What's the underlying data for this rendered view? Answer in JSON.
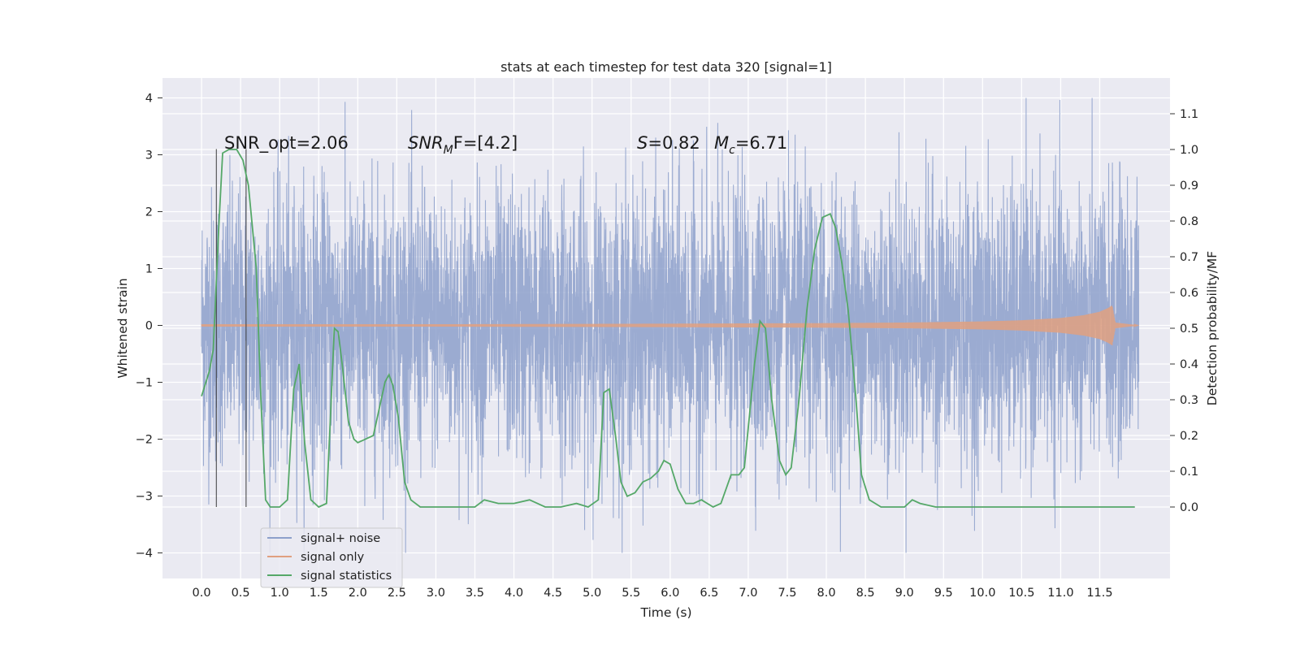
{
  "chart_data": {
    "type": "line",
    "title": "stats at each timestep for test data 320 [signal=1]",
    "xlabel": "Time (s)",
    "ylabel": "Whitened strain",
    "ylabel_right": "Detection probability/MF",
    "xlim": [
      -0.5,
      12.4
    ],
    "ylim": [
      -4.45,
      4.35
    ],
    "ylim_right": [
      -0.2,
      1.2
    ],
    "x_ticks": [
      "0.0",
      "0.5",
      "1.0",
      "1.5",
      "2.0",
      "2.5",
      "3.0",
      "3.5",
      "4.0",
      "4.5",
      "5.0",
      "5.5",
      "6.0",
      "6.5",
      "7.0",
      "7.5",
      "8.0",
      "8.5",
      "9.0",
      "9.5",
      "10.0",
      "10.5",
      "11.0",
      "11.5"
    ],
    "y_ticks": [
      "4",
      "3",
      "2",
      "1",
      "0",
      "−1",
      "−2",
      "−3",
      "−4"
    ],
    "y_ticks_right": [
      "1.1",
      "1.0",
      "0.9",
      "0.8",
      "0.7",
      "0.6",
      "0.5",
      "0.4",
      "0.3",
      "0.2",
      "0.1",
      "0.0"
    ],
    "grid": true,
    "legend_position": "lower-left",
    "annotations": {
      "snr_opt": "SNR_opt=2.06",
      "snr_mf_main": "SNR",
      "snr_mf_sub": "M",
      "snr_mf_rest": "F=[4.2]",
      "s_main": "S",
      "s_rest": "=0.82",
      "mc_main": "M",
      "mc_sub": "c",
      "mc_rest": "=6.71"
    },
    "vertical_markers_x": [
      0.19,
      0.57
    ],
    "series": [
      {
        "name": "signal+ noise",
        "color": "#8da0cb",
        "axis": "left",
        "time_range": [
          0.0,
          12.0
        ],
        "amplitude_typical": 1.2,
        "amplitude_peak": 4.0
      },
      {
        "name": "signal only",
        "color": "#e0a080",
        "axis": "left",
        "time_range": [
          0.0,
          12.0
        ],
        "envelope": [
          [
            0,
            0.02
          ],
          [
            3,
            0.02
          ],
          [
            6,
            0.03
          ],
          [
            8,
            0.04
          ],
          [
            9,
            0.05
          ],
          [
            10,
            0.07
          ],
          [
            10.5,
            0.09
          ],
          [
            11,
            0.13
          ],
          [
            11.3,
            0.18
          ],
          [
            11.5,
            0.24
          ],
          [
            11.6,
            0.3
          ],
          [
            11.66,
            0.35
          ],
          [
            11.7,
            0.05
          ],
          [
            12.0,
            0.0
          ]
        ]
      },
      {
        "name": "signal statistics",
        "color": "#55a868",
        "axis": "right",
        "points": [
          [
            0,
            0.31
          ],
          [
            0.1,
            0.38
          ],
          [
            0.15,
            0.44
          ],
          [
            0.22,
            0.78
          ],
          [
            0.27,
            0.99
          ],
          [
            0.35,
            1.0
          ],
          [
            0.45,
            1.0
          ],
          [
            0.53,
            0.97
          ],
          [
            0.6,
            0.9
          ],
          [
            0.7,
            0.67
          ],
          [
            0.76,
            0.3
          ],
          [
            0.82,
            0.02
          ],
          [
            0.88,
            0.0
          ],
          [
            1.0,
            0.0
          ],
          [
            1.1,
            0.02
          ],
          [
            1.18,
            0.33
          ],
          [
            1.25,
            0.4
          ],
          [
            1.32,
            0.18
          ],
          [
            1.4,
            0.02
          ],
          [
            1.5,
            0.0
          ],
          [
            1.6,
            0.01
          ],
          [
            1.65,
            0.25
          ],
          [
            1.7,
            0.5
          ],
          [
            1.75,
            0.49
          ],
          [
            1.8,
            0.4
          ],
          [
            1.88,
            0.24
          ],
          [
            1.95,
            0.19
          ],
          [
            2.0,
            0.18
          ],
          [
            2.1,
            0.19
          ],
          [
            2.2,
            0.2
          ],
          [
            2.28,
            0.28
          ],
          [
            2.35,
            0.35
          ],
          [
            2.4,
            0.37
          ],
          [
            2.45,
            0.34
          ],
          [
            2.52,
            0.25
          ],
          [
            2.6,
            0.07
          ],
          [
            2.68,
            0.02
          ],
          [
            2.8,
            0.0
          ],
          [
            3.0,
            0.0
          ],
          [
            3.3,
            0.0
          ],
          [
            3.5,
            0.0
          ],
          [
            3.62,
            0.02
          ],
          [
            3.8,
            0.01
          ],
          [
            4.0,
            0.01
          ],
          [
            4.2,
            0.02
          ],
          [
            4.4,
            0.0
          ],
          [
            4.6,
            0.0
          ],
          [
            4.8,
            0.01
          ],
          [
            4.95,
            0.0
          ],
          [
            5.08,
            0.02
          ],
          [
            5.15,
            0.32
          ],
          [
            5.22,
            0.33
          ],
          [
            5.3,
            0.2
          ],
          [
            5.37,
            0.07
          ],
          [
            5.45,
            0.03
          ],
          [
            5.55,
            0.04
          ],
          [
            5.65,
            0.07
          ],
          [
            5.75,
            0.08
          ],
          [
            5.85,
            0.1
          ],
          [
            5.92,
            0.13
          ],
          [
            6.0,
            0.12
          ],
          [
            6.1,
            0.05
          ],
          [
            6.2,
            0.01
          ],
          [
            6.3,
            0.01
          ],
          [
            6.4,
            0.02
          ],
          [
            6.55,
            0.0
          ],
          [
            6.65,
            0.01
          ],
          [
            6.78,
            0.09
          ],
          [
            6.88,
            0.09
          ],
          [
            6.95,
            0.11
          ],
          [
            7.08,
            0.4
          ],
          [
            7.15,
            0.52
          ],
          [
            7.22,
            0.5
          ],
          [
            7.3,
            0.3
          ],
          [
            7.4,
            0.13
          ],
          [
            7.48,
            0.09
          ],
          [
            7.55,
            0.11
          ],
          [
            7.65,
            0.3
          ],
          [
            7.75,
            0.55
          ],
          [
            7.85,
            0.72
          ],
          [
            7.95,
            0.81
          ],
          [
            8.05,
            0.82
          ],
          [
            8.12,
            0.78
          ],
          [
            8.2,
            0.68
          ],
          [
            8.28,
            0.55
          ],
          [
            8.38,
            0.3
          ],
          [
            8.45,
            0.09
          ],
          [
            8.55,
            0.02
          ],
          [
            8.7,
            0.0
          ],
          [
            9.0,
            0.0
          ],
          [
            9.1,
            0.02
          ],
          [
            9.2,
            0.01
          ],
          [
            9.4,
            0.0
          ],
          [
            9.7,
            0.0
          ],
          [
            10.0,
            0.0
          ],
          [
            10.2,
            0.0
          ],
          [
            10.5,
            0.0
          ],
          [
            10.8,
            0.0
          ],
          [
            11.0,
            0.0
          ],
          [
            11.2,
            0.0
          ],
          [
            11.5,
            0.0
          ],
          [
            11.8,
            0.0
          ],
          [
            11.95,
            0.0
          ]
        ]
      }
    ]
  },
  "legend": {
    "items": [
      {
        "label": "signal+ noise",
        "color": "#8da0cb"
      },
      {
        "label": "signal only",
        "color": "#e0a080"
      },
      {
        "label": "signal statistics",
        "color": "#55a868"
      }
    ]
  }
}
